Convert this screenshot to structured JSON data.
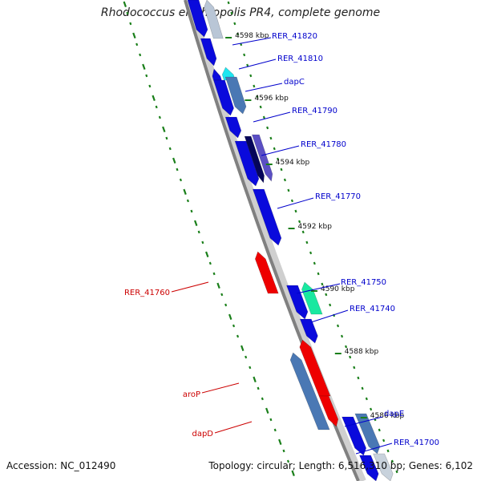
{
  "title": "Rhodococcus erythropolis PR4, complete genome",
  "footer": {
    "accession": "Accession: NC_012490",
    "topology": "Topology: circular; Length: 6,516,310 bp; Genes: 6,102"
  },
  "colors": {
    "backbone": "#808080",
    "backbone_light": "#cfcfcf",
    "gc_ticks": "#1a7f1a",
    "gene_blue": "#0a0adc",
    "gene_steel": "#4a78b4",
    "gene_cyan": "#1ee6f0",
    "gene_red": "#ee0000",
    "gene_green": "#19e8a0",
    "gene_navy": "#05055a",
    "gene_violet": "#5b4fc4",
    "label_blue": "#0000cc",
    "label_red": "#cc0000"
  },
  "kbp_labels": [
    "4598 kbp",
    "4596 kbp",
    "4594 kbp",
    "4592 kbp",
    "4590 kbp",
    "4588 kbp",
    "4586 kbp"
  ],
  "gene_labels": [
    "RER_41820",
    "RER_41810",
    "dapC",
    "RER_41790",
    "RER_41780",
    "RER_41770",
    "RER_41750",
    "RER_41740",
    "RER_41760",
    "aroP",
    "dapD",
    "dapE",
    "RER_41700"
  ]
}
